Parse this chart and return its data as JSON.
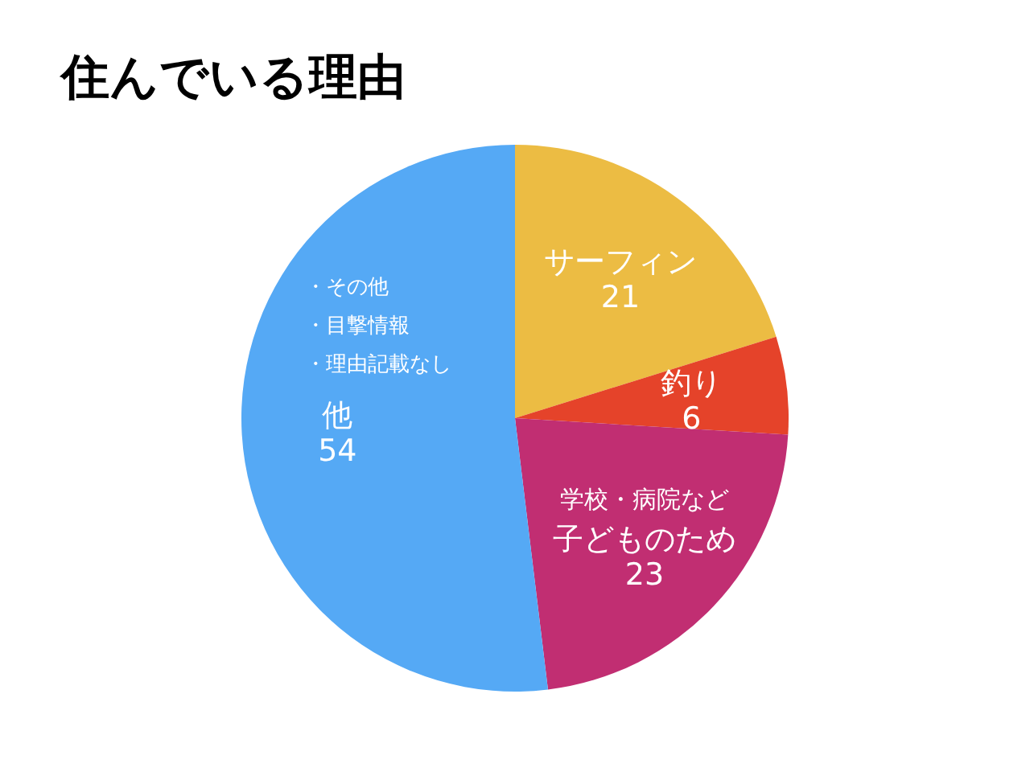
{
  "chart_data": {
    "type": "pie",
    "title": "住んでいる理由",
    "categories": [
      "サーフィン",
      "釣り",
      "学校・病院など子どものため",
      "他"
    ],
    "values": [
      21,
      6,
      23,
      54
    ],
    "colors": [
      "#ecbc43",
      "#e5432a",
      "#c12e72",
      "#55a9f5"
    ],
    "data_labels": true,
    "annotations": [
      "・その他",
      "・目撃情報",
      "・理由記載なし"
    ]
  }
}
